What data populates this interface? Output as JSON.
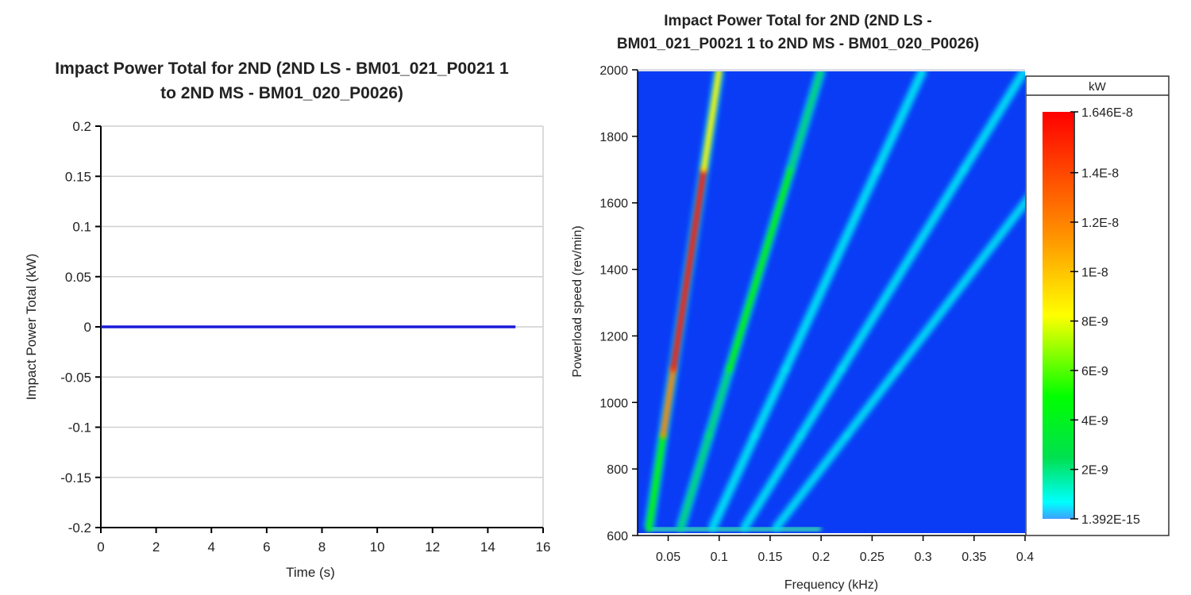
{
  "chart_data": [
    {
      "type": "line",
      "title_lines": [
        "Impact Power Total for 2ND (2ND LS - BM01_021_P0021 1",
        "to 2ND MS - BM01_020_P0026)"
      ],
      "xlabel": "Time (s)",
      "ylabel": "Impact Power Total (kW)",
      "xlim": [
        0,
        16
      ],
      "ylim": [
        -0.2,
        0.2
      ],
      "xticks": [
        "0",
        "2",
        "4",
        "6",
        "8",
        "10",
        "12",
        "14",
        "16"
      ],
      "yticks": [
        "0.2",
        "0.15",
        "0.1",
        "0.05",
        "0",
        "-0.05",
        "-0.1",
        "-0.15",
        "-0.2"
      ],
      "grid": true,
      "series": [
        {
          "color": "#1a1ad6",
          "x": [
            0,
            15
          ],
          "y": [
            0,
            0
          ]
        }
      ]
    },
    {
      "type": "heatmap",
      "title_lines": [
        "Impact Power Total for 2ND (2ND LS -",
        "BM01_021_P0021 1 to 2ND MS - BM01_020_P0026)"
      ],
      "xlabel": "Frequency (kHz)",
      "ylabel": "Powerload speed (rev/min)",
      "xlim": [
        0.02,
        0.4
      ],
      "ylim": [
        600,
        2000
      ],
      "xticks": [
        "0.05",
        "0.1",
        "0.15",
        "0.2",
        "0.25",
        "0.3",
        "0.35",
        "0.4"
      ],
      "yticks": [
        "2000",
        "1800",
        "1600",
        "1400",
        "1200",
        "1000",
        "800",
        "600"
      ],
      "colorbar": {
        "unit": "kW",
        "range": [
          1.392e-15,
          1.646e-08
        ],
        "ticks": [
          "1.646E-8",
          "1.4E-8",
          "1.2E-8",
          "1E-8",
          "8E-9",
          "6E-9",
          "4E-9",
          "2E-9",
          "1.392E-15"
        ]
      },
      "ridges": [
        {
          "freq_per_1000rpm": 0.05,
          "peak_kW": 1.6e-08
        },
        {
          "freq_per_1000rpm": 0.1,
          "peak_kW": 4e-09
        },
        {
          "freq_per_1000rpm": 0.15,
          "peak_kW": 1.5e-09
        },
        {
          "freq_per_1000rpm": 0.2,
          "peak_kW": 1e-09
        },
        {
          "freq_per_1000rpm": 0.25,
          "peak_kW": 6e-10
        }
      ],
      "background_color": "#0a3cf5"
    }
  ]
}
